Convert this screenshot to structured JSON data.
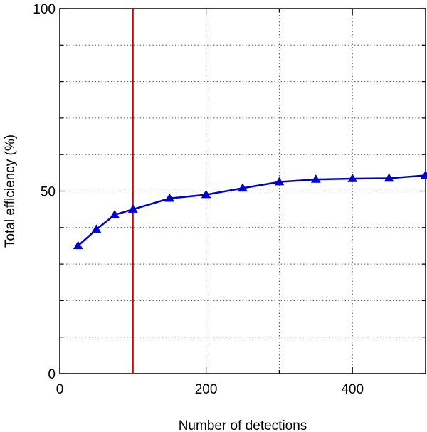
{
  "chart_data": {
    "type": "line",
    "title": "",
    "xlabel": "Number of detections",
    "ylabel": "Total efficiency (%)",
    "xlim": [
      0,
      500
    ],
    "ylim": [
      0,
      100
    ],
    "x_major_ticks": [
      0,
      200,
      400
    ],
    "x_minor_step": 100,
    "y_major_ticks": [
      0,
      50,
      100
    ],
    "y_minor_step": 10,
    "x_tick_labels": [
      "0",
      "200",
      "400"
    ],
    "y_tick_labels": [
      "0",
      "50",
      "100"
    ],
    "grid": true,
    "series": [
      {
        "color": "#0000cc",
        "marker": "triangle",
        "x": [
          25,
          50,
          75,
          100,
          150,
          200,
          250,
          300,
          350,
          400,
          450,
          500
        ],
        "y": [
          35,
          39.5,
          43.5,
          45,
          48,
          49,
          50.8,
          52.5,
          53.2,
          53.4,
          53.5,
          54.3
        ]
      }
    ],
    "vertical_line": {
      "x": 100,
      "color": "#cc0000"
    }
  }
}
